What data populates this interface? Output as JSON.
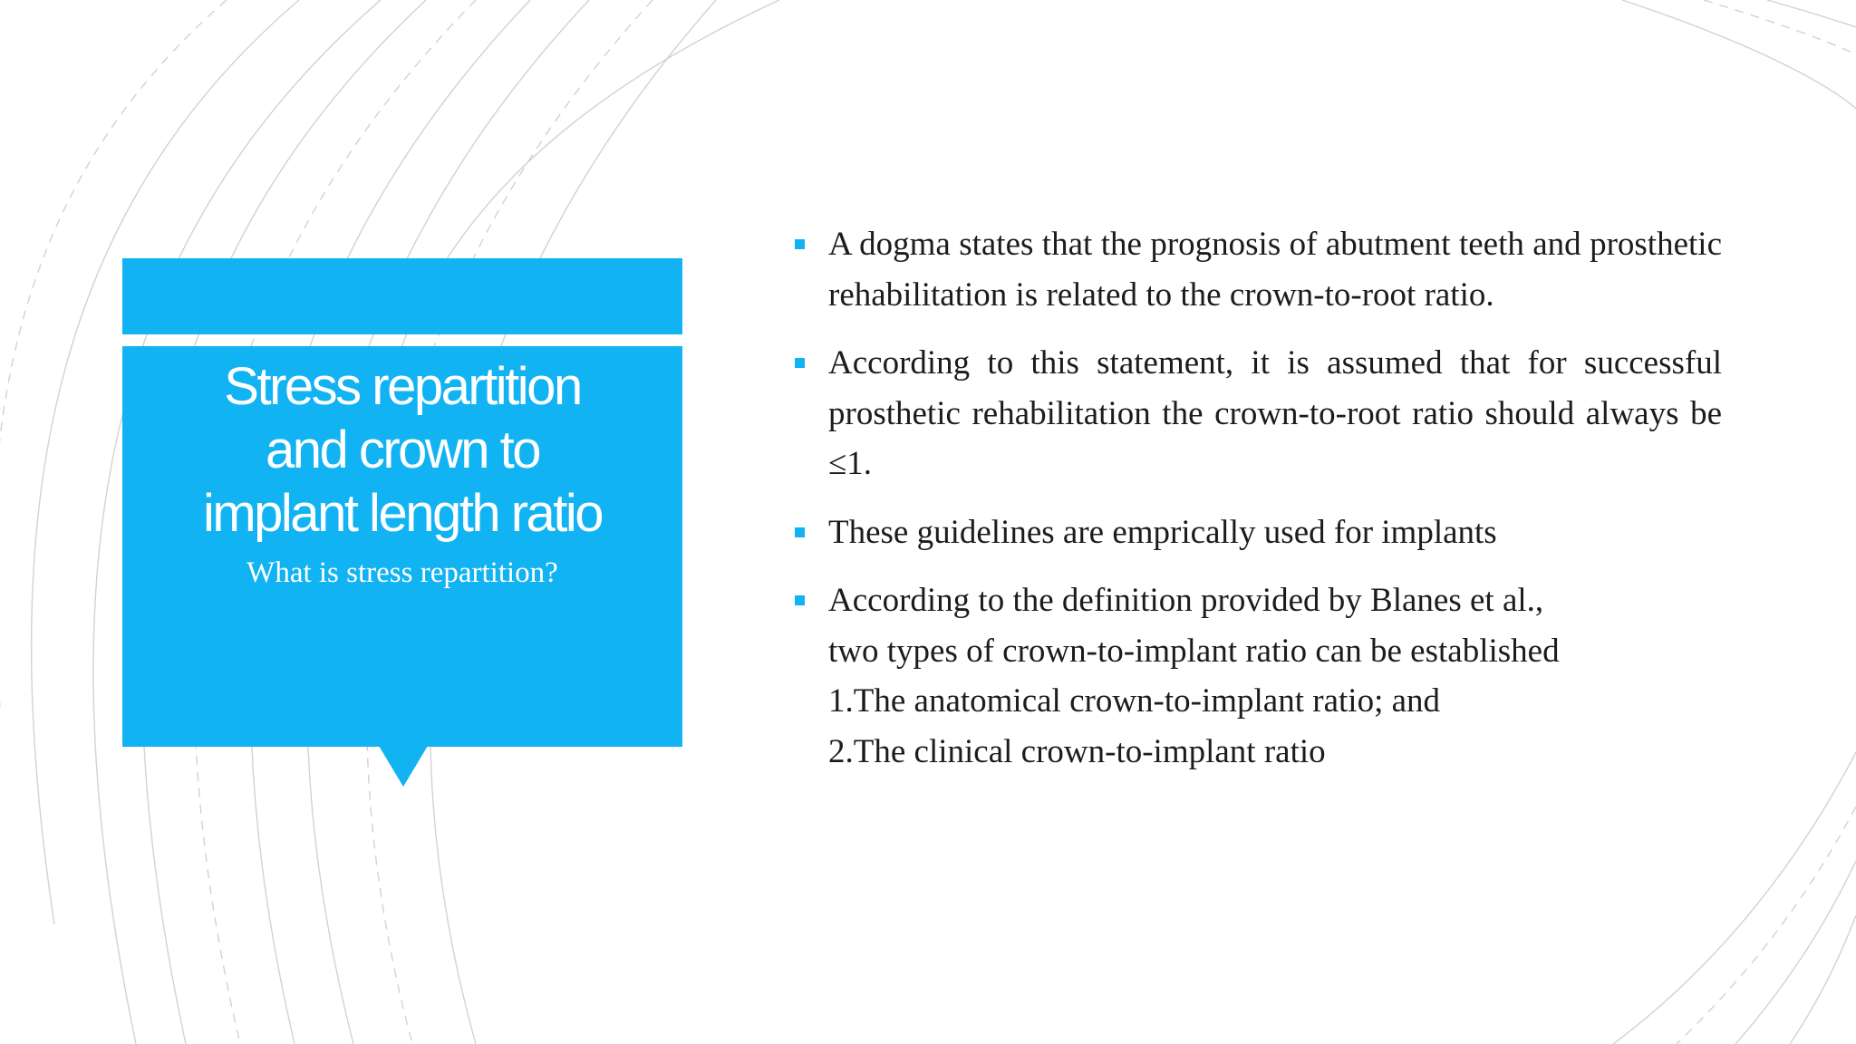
{
  "slide": {
    "accent_color": "#12b3f2",
    "title_lines": [
      "Stress repartition",
      "and crown to",
      "implant length ratio"
    ],
    "subtitle": "What is stress repartition?",
    "bullets": [
      {
        "text": "A dogma states that the prognosis of abutment teeth and prosthetic rehabilitation is related to the crown-to-root ratio."
      },
      {
        "text": "According to this statement, it is assumed that for successful prosthetic rehabilitation the crown-to-root ratio should always be ≤1."
      },
      {
        "text": "These guidelines are emprically used for implants"
      },
      {
        "lines": [
          "According to the definition provided by Blanes et al.,",
          "two types of crown-to-implant ratio can be established",
          "1.The anatomical crown-to-implant ratio; and",
          "2.The clinical crown-to-implant ratio"
        ]
      }
    ]
  }
}
